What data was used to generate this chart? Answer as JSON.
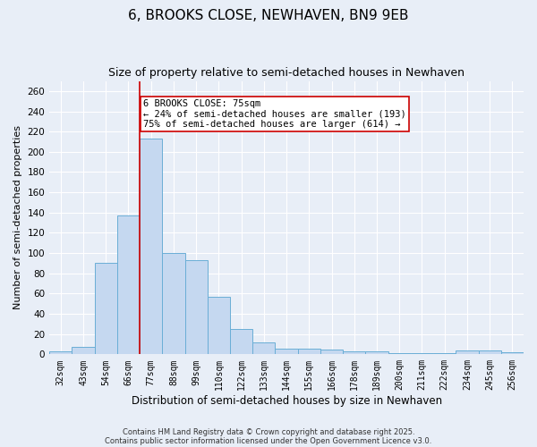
{
  "title": "6, BROOKS CLOSE, NEWHAVEN, BN9 9EB",
  "subtitle": "Size of property relative to semi-detached houses in Newhaven",
  "xlabel": "Distribution of semi-detached houses by size in Newhaven",
  "ylabel": "Number of semi-detached properties",
  "categories": [
    "32sqm",
    "43sqm",
    "54sqm",
    "66sqm",
    "77sqm",
    "88sqm",
    "99sqm",
    "110sqm",
    "122sqm",
    "133sqm",
    "144sqm",
    "155sqm",
    "166sqm",
    "178sqm",
    "189sqm",
    "200sqm",
    "211sqm",
    "222sqm",
    "234sqm",
    "245sqm",
    "256sqm"
  ],
  "values": [
    3,
    7,
    90,
    137,
    213,
    100,
    93,
    57,
    25,
    12,
    6,
    6,
    5,
    3,
    3,
    1,
    1,
    1,
    4,
    4,
    2
  ],
  "bar_color": "#c5d8f0",
  "bar_edge_color": "#6aaed6",
  "highlight_line_index": 4,
  "highlight_line_color": "#cc0000",
  "annotation_text": "6 BROOKS CLOSE: 75sqm\n← 24% of semi-detached houses are smaller (193)\n75% of semi-detached houses are larger (614) →",
  "annotation_box_color": "#ffffff",
  "annotation_box_edge_color": "#cc0000",
  "ylim": [
    0,
    270
  ],
  "yticks": [
    0,
    20,
    40,
    60,
    80,
    100,
    120,
    140,
    160,
    180,
    200,
    220,
    240,
    260
  ],
  "footnote1": "Contains HM Land Registry data © Crown copyright and database right 2025.",
  "footnote2": "Contains public sector information licensed under the Open Government Licence v3.0.",
  "background_color": "#e8eef7",
  "grid_color": "#ffffff",
  "title_fontsize": 11,
  "subtitle_fontsize": 9,
  "tick_fontsize": 7,
  "ylabel_fontsize": 8,
  "xlabel_fontsize": 8.5,
  "footnote_fontsize": 6,
  "annotation_fontsize": 7.5
}
